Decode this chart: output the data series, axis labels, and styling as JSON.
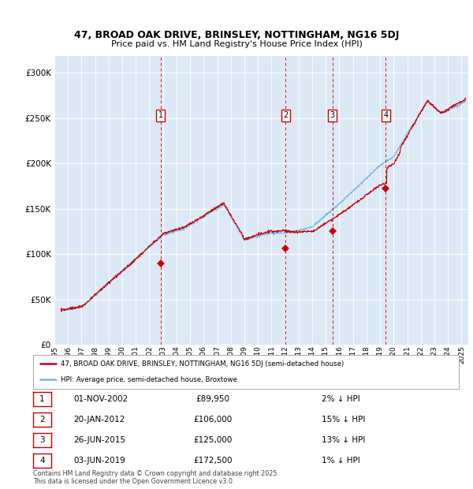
{
  "title_line1": "47, BROAD OAK DRIVE, BRINSLEY, NOTTINGHAM, NG16 5DJ",
  "title_line2": "Price paid vs. HM Land Registry's House Price Index (HPI)",
  "ytick_values": [
    0,
    50000,
    100000,
    150000,
    200000,
    250000,
    300000
  ],
  "ylim": [
    0,
    318000
  ],
  "xlim_start": 1995.3,
  "xlim_end": 2025.5,
  "plot_bg_color": "#dce9f5",
  "hpi_color": "#7ab8e8",
  "price_color": "#cc0000",
  "sales": [
    {
      "date_num": 2002.83,
      "price": 89950,
      "label": "1"
    },
    {
      "date_num": 2012.05,
      "price": 106000,
      "label": "2"
    },
    {
      "date_num": 2015.48,
      "price": 125000,
      "label": "3"
    },
    {
      "date_num": 2019.42,
      "price": 172500,
      "label": "4"
    }
  ],
  "table_rows": [
    {
      "num": "1",
      "date": "01-NOV-2002",
      "price": "£89,950",
      "note": "2% ↓ HPI"
    },
    {
      "num": "2",
      "date": "20-JAN-2012",
      "price": "£106,000",
      "note": "15% ↓ HPI"
    },
    {
      "num": "3",
      "date": "26-JUN-2015",
      "price": "£125,000",
      "note": "13% ↓ HPI"
    },
    {
      "num": "4",
      "date": "03-JUN-2019",
      "price": "£172,500",
      "note": "1% ↓ HPI"
    }
  ],
  "legend_line1": "47, BROAD OAK DRIVE, BRINSLEY, NOTTINGHAM, NG16 5DJ (semi-detached house)",
  "legend_line2": "HPI: Average price, semi-detached house, Broxtowe",
  "footnote": "Contains HM Land Registry data © Crown copyright and database right 2025.\nThis data is licensed under the Open Government Licence v3.0.",
  "xtick_years": [
    1995,
    1996,
    1997,
    1998,
    1999,
    2000,
    2001,
    2002,
    2003,
    2004,
    2005,
    2006,
    2007,
    2008,
    2009,
    2010,
    2011,
    2012,
    2013,
    2014,
    2015,
    2016,
    2017,
    2018,
    2019,
    2020,
    2021,
    2022,
    2023,
    2024,
    2025
  ]
}
